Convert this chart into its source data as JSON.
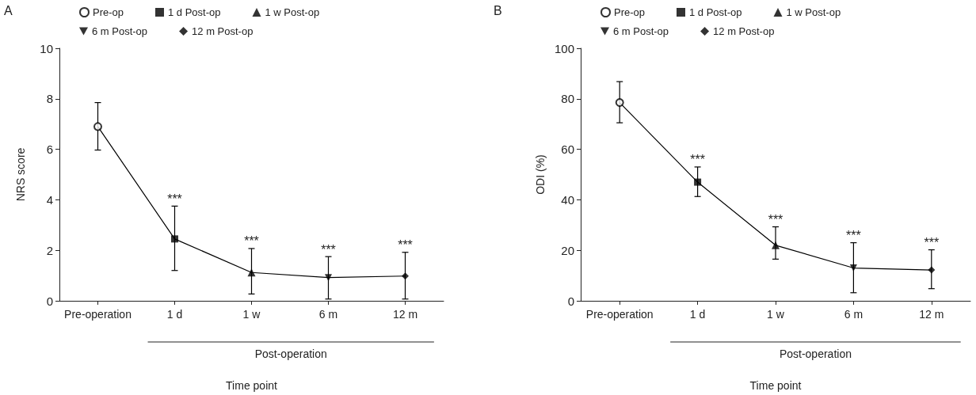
{
  "chart_data": [
    {
      "type": "line",
      "title": "A",
      "xlabel": "Time point",
      "ylabel": "NRS score",
      "categories": [
        "Pre-operation",
        "1 d",
        "1 w",
        "6 m",
        "12 m"
      ],
      "series": [
        {
          "color": "#000000",
          "marker": "none",
          "values": [
            6.9,
            2.45,
            1.12,
            0.92,
            0.98
          ]
        },
        {
          "type": "scatter",
          "name": "Pre-op",
          "color": "#000000",
          "marker": "circle",
          "values": [
            6.9,
            null,
            null,
            null,
            null
          ],
          "errors": [
            [
              5.97,
              7.85
            ],
            null,
            null,
            null,
            null
          ]
        },
        {
          "type": "scatter",
          "name": "1 d Post-op",
          "color": "#000000",
          "marker": "square",
          "values": [
            null,
            2.45,
            null,
            null,
            null
          ],
          "errors": [
            null,
            [
              1.2,
              3.75
            ],
            null,
            null,
            null
          ]
        },
        {
          "type": "scatter",
          "name": "1 w Post-op",
          "color": "#000000",
          "marker": "triangle",
          "values": [
            null,
            null,
            1.12,
            null,
            null
          ],
          "errors": [
            null,
            null,
            [
              0.27,
              2.07
            ],
            null,
            null
          ]
        },
        {
          "type": "scatter",
          "name": "6 m Post-op",
          "color": "#000000",
          "marker": "triangle-down",
          "values": [
            null,
            null,
            null,
            0.92,
            null
          ],
          "errors": [
            null,
            null,
            null,
            [
              0.07,
              1.75
            ],
            null
          ]
        },
        {
          "type": "scatter",
          "name": "12 m Post-op",
          "color": "#000000",
          "marker": "diamond",
          "values": [
            null,
            null,
            null,
            null,
            0.98
          ],
          "errors": [
            null,
            null,
            null,
            null,
            [
              0.07,
              1.92
            ]
          ]
        }
      ],
      "ylim": [
        0,
        10
      ],
      "yticks": [
        0,
        2,
        4,
        6,
        8,
        10
      ],
      "grid": false,
      "legend": "top",
      "annotations": [
        {
          "text": "***",
          "x": "1 d",
          "y": 2.45
        },
        {
          "text": "***",
          "x": "1 w",
          "y": 1.12
        },
        {
          "text": "***",
          "x": "6 m",
          "y": 0.92
        },
        {
          "text": "***",
          "x": "12 m",
          "y": 0.98
        },
        "Post-operation"
      ]
    },
    {
      "type": "line",
      "title": "B",
      "xlabel": "Time point",
      "ylabel": "ODI (%)",
      "categories": [
        "Pre-operation",
        "1 d",
        "1 w",
        "6 m",
        "12 m"
      ],
      "series": [
        {
          "color": "#000000",
          "marker": "none",
          "values": [
            78.5,
            47,
            22,
            13,
            12.2
          ]
        },
        {
          "type": "scatter",
          "name": "Pre-op",
          "color": "#000000",
          "marker": "circle",
          "values": [
            78.5,
            null,
            null,
            null,
            null
          ],
          "errors": [
            [
              70.5,
              86.8
            ],
            null,
            null,
            null,
            null
          ]
        },
        {
          "type": "scatter",
          "name": "1 d Post-op",
          "color": "#000000",
          "marker": "square",
          "values": [
            null,
            47,
            null,
            null,
            null
          ],
          "errors": [
            null,
            [
              41.3,
              53
            ],
            null,
            null,
            null
          ]
        },
        {
          "type": "scatter",
          "name": "1 w Post-op",
          "color": "#000000",
          "marker": "triangle",
          "values": [
            null,
            null,
            22,
            null,
            null
          ],
          "errors": [
            null,
            null,
            [
              16.5,
              29.3
            ],
            null,
            null
          ]
        },
        {
          "type": "scatter",
          "name": "6 m Post-op",
          "color": "#000000",
          "marker": "triangle-down",
          "values": [
            null,
            null,
            null,
            13,
            null
          ],
          "errors": [
            null,
            null,
            null,
            [
              3.2,
              23
            ],
            null
          ]
        },
        {
          "type": "scatter",
          "name": "12 m Post-op",
          "color": "#000000",
          "marker": "diamond",
          "values": [
            null,
            null,
            null,
            null,
            12.2
          ],
          "errors": [
            null,
            null,
            null,
            null,
            [
              4.8,
              20.2
            ]
          ]
        }
      ],
      "ylim": [
        0,
        100
      ],
      "yticks": [
        0,
        20,
        40,
        60,
        80,
        100
      ],
      "grid": false,
      "legend": "top",
      "annotations": [
        {
          "text": "***",
          "x": "1 d",
          "y": 47
        },
        {
          "text": "***",
          "x": "1 w",
          "y": 22
        },
        {
          "text": "***",
          "x": "6 m",
          "y": 13
        },
        {
          "text": "***",
          "x": "12 m",
          "y": 12.2
        },
        "Post-operation"
      ]
    }
  ]
}
